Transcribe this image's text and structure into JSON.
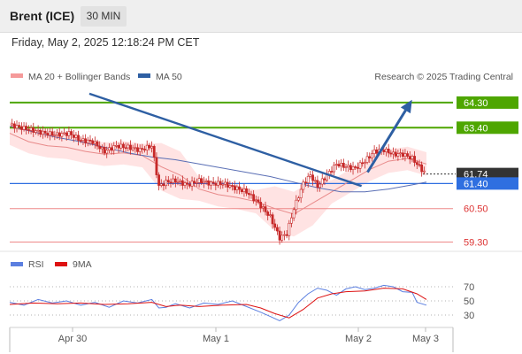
{
  "header": {
    "instrument": "Brent (ICE)",
    "timeframe": "30 MIN"
  },
  "timestamp": "Friday, May 2, 2025 12:18:24 PM CET",
  "legend": {
    "ma20_label": "MA 20 + Bollinger Bands",
    "ma50_label": "MA 50",
    "credit": "Research © 2025 Trading Central",
    "rsi_label": "RSI",
    "rsi_ma_label": "9MA"
  },
  "colors": {
    "candle": "#c62828",
    "bollinger_band": "#ffd9d9",
    "ma20": "#e88a8a",
    "ma50": "#5a6fb5",
    "resistance": "#4ea600",
    "support_pivot": "#2f6fe0",
    "support": "#ee8888",
    "current": "#333333",
    "trend_arrow": "#2e5fa3",
    "rsi": "#5b7fe0",
    "rsi_ma": "#dd1111"
  },
  "chart_data": [
    {
      "type": "candlestick",
      "title": "Brent (ICE)",
      "x_ticks": [
        "Apr 30",
        "May 1",
        "May 2",
        "May 3"
      ],
      "ylim": [
        59.0,
        64.9
      ],
      "current_price": 61.74,
      "levels": [
        {
          "value": 64.3,
          "label": "64.30",
          "role": "resistance"
        },
        {
          "value": 63.4,
          "label": "63.40",
          "role": "resistance"
        },
        {
          "value": 61.74,
          "label": "61.74",
          "role": "current"
        },
        {
          "value": 61.4,
          "label": "61.40",
          "role": "pivot"
        },
        {
          "value": 60.5,
          "label": "60.50",
          "role": "support"
        },
        {
          "value": 59.3,
          "label": "59.30",
          "role": "support"
        }
      ],
      "series": [
        {
          "name": "MA 20 + Bollinger Bands",
          "x": [
            0,
            8,
            16,
            24,
            32,
            40,
            48,
            56,
            64,
            72,
            80,
            88,
            96,
            104,
            112,
            120,
            128,
            136,
            144,
            152,
            160,
            168,
            176
          ],
          "values": [
            63.2,
            62.9,
            62.75,
            62.7,
            62.55,
            62.45,
            62.5,
            62.4,
            62.0,
            61.7,
            61.2,
            61.0,
            60.9,
            60.75,
            60.5,
            60.3,
            60.7,
            61.1,
            61.5,
            61.9,
            62.2,
            62.3,
            62.1
          ]
        },
        {
          "name": "MA 50",
          "x": [
            0,
            10,
            20,
            30,
            40,
            50,
            60,
            70,
            80,
            90,
            100,
            110,
            120,
            130,
            140,
            150,
            160,
            170,
            176
          ],
          "values": [
            63.45,
            63.25,
            63.05,
            62.9,
            62.7,
            62.5,
            62.35,
            62.25,
            62.1,
            61.95,
            61.8,
            61.65,
            61.45,
            61.25,
            61.1,
            61.1,
            61.2,
            61.35,
            61.45
          ]
        },
        {
          "name": "Price",
          "x": [
            0,
            5,
            10,
            15,
            20,
            25,
            30,
            35,
            40,
            45,
            50,
            55,
            60,
            63,
            66,
            70,
            75,
            80,
            85,
            90,
            95,
            100,
            105,
            110,
            114,
            117,
            120,
            124,
            127,
            130,
            134,
            138,
            142,
            146,
            150,
            154,
            158,
            162,
            166,
            170,
            174,
            176
          ],
          "values": [
            63.5,
            63.4,
            63.3,
            63.2,
            63.15,
            63.2,
            62.95,
            62.9,
            62.55,
            62.75,
            62.7,
            62.6,
            62.75,
            61.3,
            61.45,
            61.5,
            61.35,
            61.5,
            61.4,
            61.4,
            61.25,
            61.1,
            60.7,
            60.2,
            59.45,
            59.6,
            60.5,
            61.4,
            61.7,
            61.3,
            61.7,
            62.1,
            62.0,
            61.95,
            62.2,
            62.55,
            62.6,
            62.45,
            62.45,
            62.3,
            61.9,
            61.74
          ]
        },
        {
          "name": "Trend line",
          "x": [
            0,
            100
          ],
          "values": [
            64.65,
            61.5
          ]
        },
        {
          "name": "Target arrow",
          "x": [
            150,
            168
          ],
          "values": [
            61.74,
            64.3
          ]
        }
      ]
    },
    {
      "type": "line",
      "title": "RSI",
      "y_ticks": [
        70,
        50,
        30
      ],
      "ylim": [
        15,
        85
      ],
      "series": [
        {
          "name": "RSI",
          "x": [
            0,
            6,
            12,
            18,
            24,
            30,
            36,
            42,
            48,
            54,
            60,
            63,
            66,
            70,
            76,
            82,
            88,
            94,
            100,
            106,
            110,
            114,
            118,
            122,
            126,
            130,
            134,
            138,
            142,
            146,
            150,
            154,
            158,
            162,
            166,
            170,
            172,
            176
          ],
          "values": [
            48,
            44,
            52,
            47,
            50,
            44,
            48,
            41,
            50,
            47,
            52,
            40,
            41,
            46,
            40,
            47,
            45,
            50,
            42,
            34,
            28,
            22,
            30,
            48,
            60,
            68,
            65,
            58,
            67,
            70,
            66,
            68,
            72,
            70,
            63,
            62,
            48,
            44
          ]
        },
        {
          "name": "9MA",
          "x": [
            0,
            10,
            20,
            30,
            40,
            50,
            60,
            66,
            72,
            80,
            90,
            100,
            106,
            112,
            118,
            124,
            130,
            136,
            142,
            150,
            158,
            166,
            172,
            176
          ],
          "values": [
            45,
            47,
            46,
            47,
            45,
            46,
            48,
            42,
            44,
            42,
            44,
            45,
            40,
            32,
            26,
            38,
            54,
            60,
            63,
            64,
            68,
            67,
            60,
            52
          ]
        }
      ]
    }
  ]
}
